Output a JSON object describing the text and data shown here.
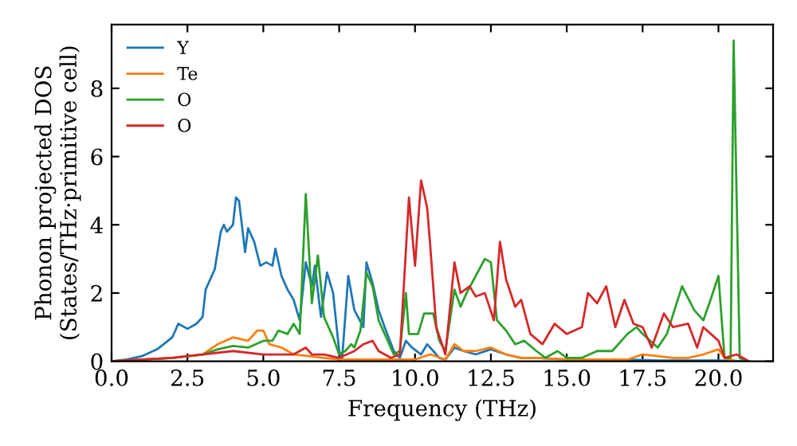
{
  "chart_data": {
    "type": "line",
    "xlabel": "Frequency (THz)",
    "ylabel": "Phonon projected DOS\n(States/THz·primitive cell)",
    "xlim": [
      0,
      21.8
    ],
    "ylim": [
      0,
      9.87
    ],
    "xticks": [
      {
        "value": 0,
        "label": "0.0"
      },
      2.5,
      {
        "value": 5,
        "label": "5.0"
      },
      7.5,
      {
        "value": 10,
        "label": "10.0"
      },
      12.5,
      {
        "value": 15,
        "label": "15.0"
      },
      17.5,
      {
        "value": 20,
        "label": "20.0"
      }
    ],
    "yticks": [
      0,
      2,
      4,
      6,
      8
    ],
    "grid": false,
    "legend": "top left",
    "marker": "none",
    "line_style": "solid",
    "series": [
      {
        "name": "Y",
        "color": "#1f77b4",
        "x": [
          0,
          0.5,
          1,
          1.5,
          2,
          2.2,
          2.5,
          2.8,
          3,
          3.1,
          3.4,
          3.6,
          3.7,
          3.8,
          4.0,
          4.1,
          4.2,
          4.4,
          4.5,
          4.7,
          4.9,
          5.1,
          5.3,
          5.4,
          5.6,
          5.8,
          6.0,
          6.2,
          6.4,
          6.6,
          6.7,
          6.9,
          7.1,
          7.3,
          7.5,
          7.6,
          7.8,
          8.0,
          8.3,
          8.4,
          8.6,
          8.8,
          9.0,
          9.3,
          9.5,
          9.7,
          9.9,
          10.2,
          10.4,
          10.6,
          10.8,
          11.0,
          11.3,
          11.6,
          12.0,
          12.5,
          13.0,
          13.5,
          14.0,
          15,
          16,
          17,
          18,
          20,
          21
        ],
        "values": [
          0,
          0.05,
          0.15,
          0.35,
          0.7,
          1.1,
          0.95,
          1.1,
          1.3,
          2.1,
          2.7,
          3.8,
          4.0,
          3.8,
          4.0,
          4.8,
          4.7,
          3.2,
          3.9,
          3.5,
          2.8,
          2.9,
          2.8,
          3.3,
          2.5,
          2.1,
          1.8,
          1.2,
          2.9,
          2.2,
          2.8,
          1.3,
          2.6,
          2.0,
          0.3,
          0.1,
          2.5,
          1.5,
          1.0,
          2.9,
          2.3,
          1.5,
          1.0,
          0.3,
          0.1,
          0.6,
          0.4,
          0.2,
          0.5,
          0.3,
          0.1,
          0.05,
          0.4,
          0.3,
          0.2,
          0.35,
          0.2,
          0.1,
          0.1,
          0.05,
          0.05,
          0.05,
          0.02,
          0.02,
          0
        ]
      },
      {
        "name": "Te",
        "color": "#ff7f0e",
        "x": [
          0,
          2,
          3,
          3.5,
          4,
          4.5,
          4.8,
          5.0,
          5.2,
          5.6,
          6.0,
          6.5,
          7,
          7.5,
          8,
          9,
          9.5,
          10,
          10.5,
          11,
          11.3,
          11.6,
          12,
          12.5,
          13,
          13.5,
          14,
          15,
          16,
          17,
          17.5,
          18,
          18.5,
          19,
          19.5,
          20,
          20.2,
          20.5
        ],
        "values": [
          0,
          0.1,
          0.2,
          0.5,
          0.7,
          0.6,
          0.9,
          0.9,
          0.5,
          0.4,
          0.2,
          0.15,
          0.1,
          0.05,
          0.05,
          0.05,
          0.05,
          0.05,
          0.2,
          0.05,
          0.5,
          0.3,
          0.3,
          0.4,
          0.2,
          0.1,
          0.1,
          0.05,
          0.05,
          0.05,
          0.2,
          0.15,
          0.1,
          0.1,
          0.2,
          0.35,
          0.1,
          0.02
        ]
      },
      {
        "name": "O",
        "color": "#2ca02c",
        "x": [
          0,
          2,
          3,
          3.5,
          4,
          4.5,
          5,
          5.3,
          5.5,
          5.8,
          6.0,
          6.2,
          6.4,
          6.6,
          6.8,
          7.0,
          7.3,
          7.5,
          7.7,
          7.9,
          8.0,
          8.2,
          8.4,
          8.6,
          8.8,
          9.0,
          9.3,
          9.5,
          9.7,
          9.8,
          10.1,
          10.3,
          10.6,
          10.8,
          11.0,
          11.3,
          11.5,
          11.7,
          12.0,
          12.3,
          12.5,
          12.7,
          13.0,
          13.3,
          13.6,
          14.0,
          14.3,
          14.7,
          15.0,
          15.5,
          16,
          16.5,
          17,
          17.3,
          17.5,
          18,
          18.3,
          18.8,
          19.2,
          19.5,
          19.7,
          20.0,
          20.2,
          20.4,
          20.5,
          20.7,
          20.9
        ],
        "values": [
          0,
          0.1,
          0.2,
          0.35,
          0.45,
          0.4,
          0.6,
          0.6,
          0.9,
          0.8,
          1.1,
          0.8,
          4.9,
          1.7,
          3.1,
          1.3,
          0.7,
          0.2,
          0.3,
          0.5,
          0.4,
          0.9,
          2.6,
          2.2,
          1.2,
          0.8,
          0.2,
          0.3,
          2.0,
          0.8,
          0.8,
          1.4,
          1.4,
          0.6,
          0.3,
          2.1,
          1.6,
          2.0,
          2.5,
          3.0,
          2.9,
          1.2,
          0.9,
          0.5,
          0.6,
          0.3,
          0.1,
          0.3,
          0.1,
          0.1,
          0.3,
          0.3,
          0.8,
          1.0,
          0.8,
          0.4,
          0.8,
          2.2,
          1.5,
          1.2,
          1.7,
          2.5,
          0.1,
          0.1,
          9.4,
          0.1,
          0
        ]
      },
      {
        "name": "O",
        "color": "#d62728",
        "x": [
          0,
          2,
          3,
          4,
          5,
          6,
          6.4,
          6.6,
          7,
          7.5,
          8.0,
          8.3,
          8.6,
          8.8,
          9.2,
          9.5,
          9.8,
          10.0,
          10.2,
          10.4,
          10.5,
          10.7,
          11.0,
          11.3,
          11.5,
          11.8,
          12.0,
          12.3,
          12.6,
          12.8,
          13.0,
          13.3,
          13.5,
          13.8,
          14.2,
          14.6,
          15.0,
          15.5,
          15.7,
          16.0,
          16.3,
          16.6,
          16.9,
          17.2,
          17.5,
          17.8,
          18.2,
          18.5,
          19.0,
          19.3,
          19.5,
          20.0,
          20.2,
          20.6,
          21.0
        ],
        "values": [
          0,
          0.1,
          0.2,
          0.3,
          0.2,
          0.2,
          0.4,
          0.2,
          0.2,
          0.1,
          0.3,
          0.5,
          0.6,
          0.3,
          0.1,
          0.2,
          4.8,
          2.8,
          5.3,
          4.5,
          3.4,
          1.0,
          0.2,
          2.9,
          2.0,
          2.2,
          1.9,
          2.0,
          1.2,
          3.5,
          2.4,
          1.6,
          1.8,
          0.8,
          0.5,
          1.1,
          0.8,
          1.0,
          2.0,
          1.7,
          2.2,
          1.0,
          1.8,
          1.1,
          1.0,
          0.4,
          1.4,
          1.0,
          1.1,
          0.4,
          1.0,
          0.6,
          0.1,
          0.2,
          0
        ]
      }
    ]
  }
}
